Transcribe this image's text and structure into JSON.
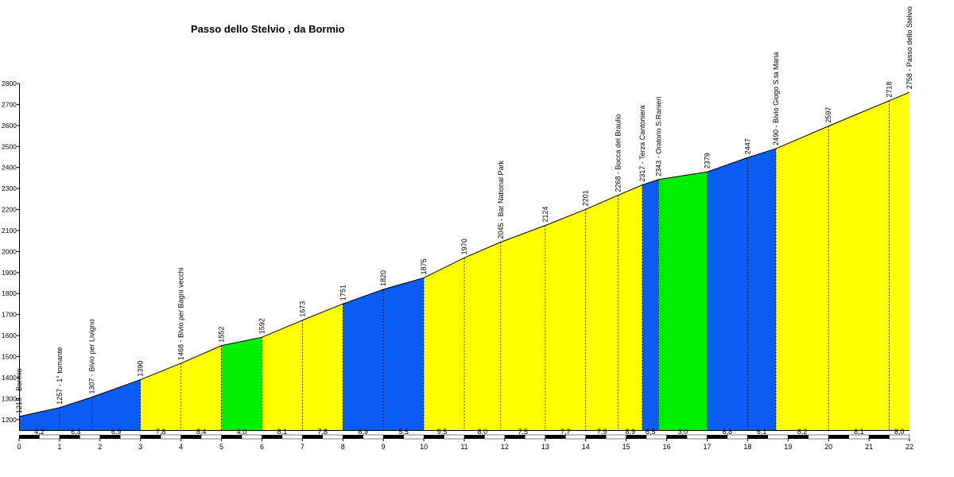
{
  "chart_data": {
    "type": "area",
    "title": "Passo dello Stelvio , da Bormio",
    "xlim": [
      0,
      22
    ],
    "ylim": [
      1150,
      2800
    ],
    "x_ticks": [
      "0",
      "1",
      "2",
      "3",
      "4",
      "5",
      "6",
      "7",
      "8",
      "9",
      "10",
      "11",
      "12",
      "13",
      "14",
      "15",
      "16",
      "17",
      "18",
      "19",
      "20",
      "21",
      "22"
    ],
    "y_ticks": [
      "2800",
      "2700",
      "2600",
      "2500",
      "2400",
      "2300",
      "2200",
      "2100",
      "2000",
      "1900",
      "1800",
      "1700",
      "1600",
      "1500",
      "1400",
      "1300",
      "1200"
    ],
    "profile": [
      {
        "x": 0,
        "y": 1215
      },
      {
        "x": 1,
        "y": 1257
      },
      {
        "x": 1.8,
        "y": 1307
      },
      {
        "x": 3,
        "y": 1390
      },
      {
        "x": 4,
        "y": 1468
      },
      {
        "x": 5,
        "y": 1552
      },
      {
        "x": 6,
        "y": 1592
      },
      {
        "x": 7,
        "y": 1673
      },
      {
        "x": 8,
        "y": 1751
      },
      {
        "x": 9,
        "y": 1820
      },
      {
        "x": 10,
        "y": 1875
      },
      {
        "x": 11,
        "y": 1970
      },
      {
        "x": 11.9,
        "y": 2045
      },
      {
        "x": 13,
        "y": 2124
      },
      {
        "x": 14,
        "y": 2201
      },
      {
        "x": 14.8,
        "y": 2268
      },
      {
        "x": 15.4,
        "y": 2317
      },
      {
        "x": 15.8,
        "y": 2343
      },
      {
        "x": 17,
        "y": 2379
      },
      {
        "x": 18,
        "y": 2447
      },
      {
        "x": 18.7,
        "y": 2490
      },
      {
        "x": 20,
        "y": 2597
      },
      {
        "x": 21.5,
        "y": 2718
      },
      {
        "x": 22,
        "y": 2758
      }
    ],
    "segments": [
      {
        "x0": 0,
        "x1": 3,
        "color": "#0a5cf5",
        "gradients": [
          {
            "x": 0.5,
            "v": "4,2"
          },
          {
            "x": 1.4,
            "v": "6,3"
          },
          {
            "x": 2.4,
            "v": "6,9"
          }
        ]
      },
      {
        "x0": 3,
        "x1": 5,
        "color": "#ffff00",
        "gradients": [
          {
            "x": 3.5,
            "v": "7,8"
          },
          {
            "x": 4.5,
            "v": "8,4"
          }
        ]
      },
      {
        "x0": 5,
        "x1": 6,
        "color": "#00ee00",
        "gradients": [
          {
            "x": 5.5,
            "v": "4,0"
          }
        ]
      },
      {
        "x0": 6,
        "x1": 8,
        "color": "#ffff00",
        "gradients": [
          {
            "x": 6.5,
            "v": "8,1"
          },
          {
            "x": 7.5,
            "v": "7,8"
          }
        ]
      },
      {
        "x0": 8,
        "x1": 10,
        "color": "#0a5cf5",
        "gradients": [
          {
            "x": 8.5,
            "v": "6,9"
          },
          {
            "x": 9.5,
            "v": "5,5"
          }
        ]
      },
      {
        "x0": 10,
        "x1": 15.4,
        "color": "#ffff00",
        "gradients": [
          {
            "x": 10.45,
            "v": "9,5"
          },
          {
            "x": 11.45,
            "v": "8,0"
          },
          {
            "x": 12.45,
            "v": "7,5"
          },
          {
            "x": 13.5,
            "v": "7,7"
          },
          {
            "x": 14.4,
            "v": "7,9"
          },
          {
            "x": 15.1,
            "v": "8,9"
          }
        ]
      },
      {
        "x0": 15.4,
        "x1": 15.8,
        "color": "#0a5cf5",
        "gradients": [
          {
            "x": 15.6,
            "v": "6,5"
          }
        ]
      },
      {
        "x0": 15.8,
        "x1": 17,
        "color": "#00ee00",
        "gradients": [
          {
            "x": 16.4,
            "v": "3,0"
          }
        ]
      },
      {
        "x0": 17,
        "x1": 18.7,
        "color": "#0a5cf5",
        "gradients": [
          {
            "x": 17.5,
            "v": "6,8"
          },
          {
            "x": 18.35,
            "v": "6,1"
          }
        ]
      },
      {
        "x0": 18.7,
        "x1": 22,
        "color": "#ffff00",
        "gradients": [
          {
            "x": 19.35,
            "v": "8,2"
          },
          {
            "x": 20.75,
            "v": "8,1"
          },
          {
            "x": 21.75,
            "v": "8,0"
          }
        ]
      }
    ],
    "labels": [
      {
        "x": 0,
        "y": 1215,
        "text": "1215 - Bormio"
      },
      {
        "x": 1,
        "y": 1257,
        "text": "1257 - 1° tornante"
      },
      {
        "x": 1.8,
        "y": 1307,
        "text": "1307 - Bivio per Livigno"
      },
      {
        "x": 3,
        "y": 1390,
        "text": "1390"
      },
      {
        "x": 4,
        "y": 1468,
        "text": "1468 - Bivio per Bagni vecchi"
      },
      {
        "x": 5,
        "y": 1552,
        "text": "1552"
      },
      {
        "x": 6,
        "y": 1592,
        "text": "1592"
      },
      {
        "x": 7,
        "y": 1673,
        "text": "1673"
      },
      {
        "x": 8,
        "y": 1751,
        "text": "1751"
      },
      {
        "x": 9,
        "y": 1820,
        "text": "1820"
      },
      {
        "x": 10,
        "y": 1875,
        "text": "1875"
      },
      {
        "x": 11,
        "y": 1970,
        "text": "1970"
      },
      {
        "x": 11.9,
        "y": 2045,
        "text": "2045 - Bar National Park"
      },
      {
        "x": 13,
        "y": 2124,
        "text": "2124"
      },
      {
        "x": 14,
        "y": 2201,
        "text": "2201"
      },
      {
        "x": 14.8,
        "y": 2268,
        "text": "2268 - Bocca del Braulio"
      },
      {
        "x": 15.4,
        "y": 2317,
        "text": "2317 - Terza Cantoniera"
      },
      {
        "x": 15.8,
        "y": 2343,
        "text": "2343 - Oratorio S.Ranieri"
      },
      {
        "x": 17,
        "y": 2379,
        "text": "2379"
      },
      {
        "x": 18,
        "y": 2447,
        "text": "2447"
      },
      {
        "x": 18.7,
        "y": 2490,
        "text": "2490 - Bivio Giogo S.ta Maria"
      },
      {
        "x": 20,
        "y": 2597,
        "text": "2597"
      },
      {
        "x": 21.5,
        "y": 2718,
        "text": "2718"
      },
      {
        "x": 22,
        "y": 2758,
        "text": "2758 - Passo dello Stelvio"
      }
    ],
    "grid": false,
    "legend": "none"
  }
}
